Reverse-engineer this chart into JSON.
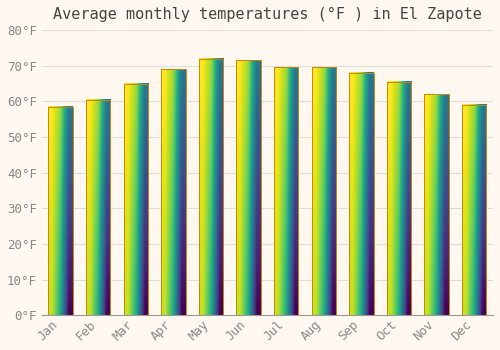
{
  "title": "Average monthly temperatures (°F ) in El Zapote",
  "months": [
    "Jan",
    "Feb",
    "Mar",
    "Apr",
    "May",
    "Jun",
    "Jul",
    "Aug",
    "Sep",
    "Oct",
    "Nov",
    "Dec"
  ],
  "values": [
    58.5,
    60.5,
    65.0,
    69.0,
    72.0,
    71.5,
    69.5,
    69.5,
    68.0,
    65.5,
    62.0,
    59.0
  ],
  "bar_color_top": "#FFD966",
  "bar_color_bottom": "#E89A00",
  "bar_edge_color": "#C8860A",
  "background_color": "#FFF8F0",
  "grid_color": "#DDDDDD",
  "text_color": "#888888",
  "title_color": "#444444",
  "ylim": [
    0,
    80
  ],
  "yticks": [
    0,
    10,
    20,
    30,
    40,
    50,
    60,
    70,
    80
  ],
  "title_fontsize": 11,
  "tick_fontsize": 9,
  "bar_width": 0.65
}
